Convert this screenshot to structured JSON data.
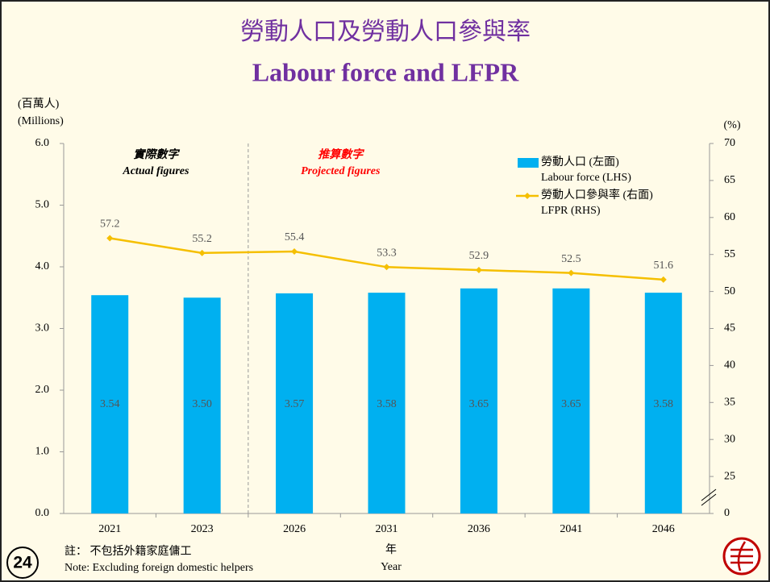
{
  "chart_data": {
    "type": "bar",
    "title": "勞動人口及勞動人口參與率",
    "subtitle": "Labour force and LFPR",
    "ylabel": [
      "(百萬人)",
      "(Millions)"
    ],
    "y2label": "(%)",
    "xlabel": [
      "年",
      "Year"
    ],
    "annotations": [
      {
        "zh": "實際數字",
        "en": "Actual figures",
        "color": "#000000"
      },
      {
        "zh": "推算數字",
        "en": "Projected figures",
        "color": "#ff0000"
      }
    ],
    "categories": [
      "2021",
      "2023",
      "2026",
      "2031",
      "2036",
      "2041",
      "2046"
    ],
    "series": [
      {
        "name": "勞動人口 (左面)",
        "name_en": "Labour force (LHS)",
        "type": "bar",
        "color": "#00b0f0",
        "values": [
          3.54,
          3.5,
          3.57,
          3.58,
          3.65,
          3.65,
          3.58
        ],
        "value_labels": [
          "3.54",
          "3.50",
          "3.57",
          "3.58",
          "3.65",
          "3.65",
          "3.58"
        ]
      },
      {
        "name": "勞動人口參與率 (右面)",
        "name_en": "LFPR (RHS)",
        "type": "line",
        "axis": "y2",
        "color": "#f5bf00",
        "values": [
          57.2,
          55.2,
          55.4,
          53.3,
          52.9,
          52.5,
          51.6
        ]
      }
    ],
    "ylim": [
      0,
      6
    ],
    "yticks": [
      {
        "value": 0,
        "label": "0.0"
      },
      {
        "value": 1,
        "label": "1.0"
      },
      {
        "value": 2,
        "label": "2.0"
      },
      {
        "value": 3,
        "label": "3.0"
      },
      {
        "value": 4,
        "label": "4.0"
      },
      {
        "value": 5,
        "label": "5.0"
      },
      {
        "value": 6,
        "label": "6.0"
      }
    ],
    "y2lim": [
      20,
      70
    ],
    "y2ticks": [
      {
        "value": 20,
        "label": "0"
      },
      25,
      30,
      35,
      40,
      45,
      50,
      55,
      60,
      65,
      70
    ],
    "grid": false
  },
  "footer": {
    "note_zh": "註： 不包括外籍家庭傭工",
    "note_en": "Note: Excluding foreign domestic helpers",
    "page": "24"
  }
}
